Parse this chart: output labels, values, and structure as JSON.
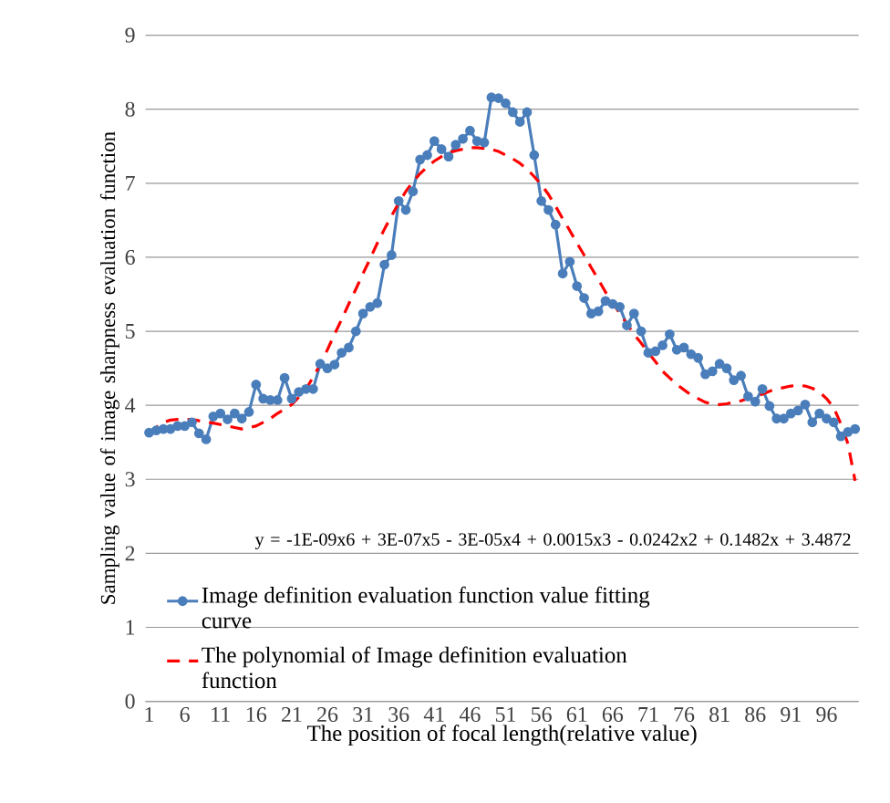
{
  "chart_data": {
    "type": "line",
    "xlabel": "The position of  focal  length(relative value)",
    "ylabel": "Sampling value of image sharpness evaluation function",
    "categories": [
      "1",
      null,
      null,
      null,
      null,
      "6",
      null,
      null,
      null,
      null,
      "11",
      null,
      null,
      null,
      null,
      "16",
      null,
      null,
      null,
      null,
      "21",
      null,
      null,
      null,
      null,
      "26",
      null,
      null,
      null,
      null,
      "31",
      null,
      null,
      null,
      null,
      "36",
      null,
      null,
      null,
      null,
      "41",
      null,
      null,
      null,
      null,
      "46",
      null,
      null,
      null,
      null,
      "51",
      null,
      null,
      null,
      null,
      "56",
      null,
      null,
      null,
      null,
      "61",
      null,
      null,
      null,
      null,
      "66",
      null,
      null,
      null,
      null,
      "71",
      null,
      null,
      null,
      null,
      "76",
      null,
      null,
      null,
      null,
      "81",
      null,
      null,
      null,
      null,
      "86",
      null,
      null,
      null,
      null,
      "91",
      null,
      null,
      null,
      null,
      "96",
      null,
      null,
      null,
      null
    ],
    "series": [
      {
        "name": "Image definition evaluation function value fitting curve",
        "color": "#4a7ebb",
        "marker": "circle",
        "line_style": "solid",
        "values": [
          3.63,
          3.66,
          3.68,
          3.68,
          3.72,
          3.72,
          3.77,
          3.62,
          3.54,
          3.85,
          3.89,
          3.81,
          3.89,
          3.82,
          3.91,
          4.28,
          4.09,
          4.07,
          4.07,
          4.37,
          4.09,
          4.18,
          4.22,
          4.22,
          4.56,
          4.5,
          4.55,
          4.71,
          4.78,
          5.0,
          5.24,
          5.33,
          5.38,
          5.9,
          6.03,
          6.76,
          6.64,
          6.89,
          7.32,
          7.38,
          7.57,
          7.46,
          7.36,
          7.52,
          7.6,
          7.71,
          7.57,
          7.55,
          8.16,
          8.15,
          8.08,
          7.96,
          7.83,
          7.96,
          7.38,
          6.76,
          6.64,
          6.44,
          5.78,
          5.94,
          5.61,
          5.45,
          5.24,
          5.27,
          5.41,
          5.37,
          5.33,
          5.08,
          5.24,
          5.0,
          4.71,
          4.73,
          4.81,
          4.96,
          4.75,
          4.78,
          4.69,
          4.64,
          4.42,
          4.46,
          4.56,
          4.5,
          4.34,
          4.4,
          4.12,
          4.05,
          4.22,
          3.99,
          3.82,
          3.82,
          3.89,
          3.93,
          4.01,
          3.77,
          3.89,
          3.82,
          3.77,
          3.58,
          3.64,
          3.68
        ]
      },
      {
        "name": "The polynomial of Image definition evaluation function",
        "color": "#ff0000",
        "marker": "none",
        "line_style": "dashed",
        "values": [
          3.6,
          3.7,
          3.77,
          3.8,
          3.81,
          3.81,
          3.81,
          3.79,
          3.77,
          3.76,
          3.74,
          3.72,
          3.7,
          3.68,
          3.7,
          3.72,
          3.77,
          3.82,
          3.89,
          3.95,
          4.01,
          4.11,
          4.22,
          4.38,
          4.55,
          4.75,
          4.96,
          5.16,
          5.37,
          5.57,
          5.78,
          5.98,
          6.19,
          6.38,
          6.56,
          6.73,
          6.89,
          7.02,
          7.13,
          7.22,
          7.3,
          7.36,
          7.41,
          7.44,
          7.46,
          7.48,
          7.48,
          7.47,
          7.46,
          7.43,
          7.38,
          7.33,
          7.27,
          7.19,
          7.09,
          6.98,
          6.85,
          6.69,
          6.52,
          6.36,
          6.19,
          6.03,
          5.86,
          5.7,
          5.53,
          5.39,
          5.24,
          5.1,
          4.96,
          4.84,
          4.71,
          4.59,
          4.46,
          4.37,
          4.28,
          4.21,
          4.14,
          4.09,
          4.04,
          4.02,
          4.01,
          4.02,
          4.04,
          4.06,
          4.09,
          4.12,
          4.15,
          4.19,
          4.22,
          4.24,
          4.26,
          4.27,
          4.26,
          4.23,
          4.18,
          4.09,
          3.97,
          3.75,
          3.48,
          2.98
        ]
      }
    ],
    "annotations": [
      "y = -1E-09x6 + 3E-07x5 - 3E-05x4 + 0.0015x3 - 0.0242x2 + 0.1482x + 3.4872"
    ],
    "ylim": [
      0,
      9
    ],
    "yticks": [
      0,
      1,
      2,
      3,
      4,
      5,
      6,
      7,
      8,
      9
    ],
    "grid": "y",
    "legend": "bottom"
  }
}
